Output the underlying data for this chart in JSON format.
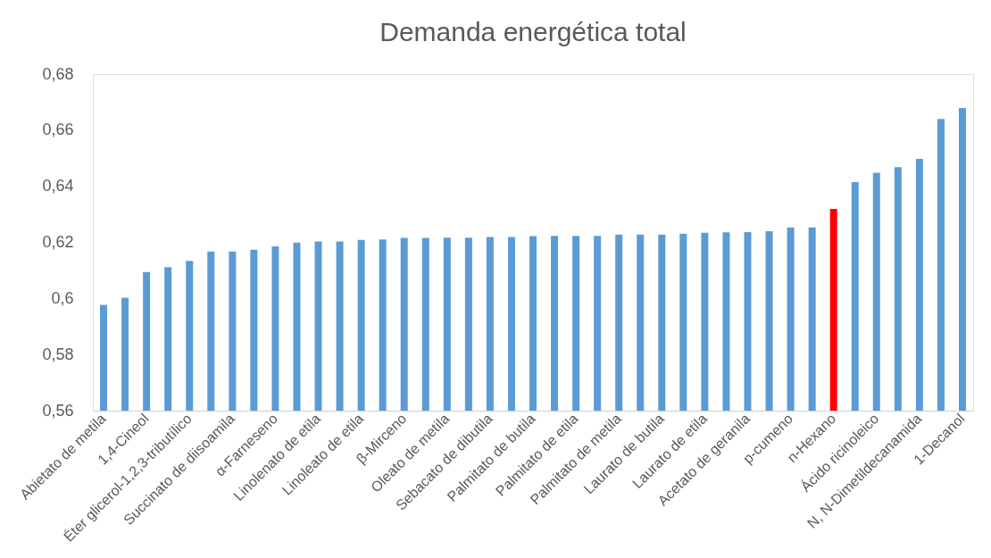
{
  "chart_data": {
    "type": "bar",
    "title": "Demanda energética total",
    "categories": [
      "Abietato de metila",
      null,
      "1,4-Cineol",
      null,
      "Éter glicerol-1,2,3-tributílico",
      null,
      "Succinato de diisoamila",
      null,
      "α-Farneseno",
      null,
      "Linolenato de etila",
      null,
      "Linoleato de etila",
      null,
      "β-Mirceno",
      null,
      "Oleato de metila",
      null,
      "Sebacato de dibutila",
      null,
      "Palmitato de butila",
      null,
      "Palmitato de etila",
      null,
      "Palmitato de metila",
      null,
      "Laurato de butila",
      null,
      "Laurato de etila",
      null,
      "Acetato de geranila",
      null,
      "p-cumeno",
      null,
      "n-Hexano",
      null,
      "Ácido ricinoleico",
      null,
      "N, N-Dimetildecanamida",
      null,
      "1-Decanol"
    ],
    "values": [
      0.5977,
      0.6003,
      0.6094,
      0.6112,
      0.6134,
      0.6167,
      0.6167,
      0.6174,
      0.6186,
      0.6199,
      0.6203,
      0.6203,
      0.6209,
      0.621,
      0.6216,
      0.6216,
      0.6217,
      0.6217,
      0.6219,
      0.6219,
      0.6222,
      0.6223,
      0.6223,
      0.6223,
      0.6228,
      0.6228,
      0.6228,
      0.6231,
      0.6234,
      0.6236,
      0.6237,
      0.624,
      0.6253,
      0.6253,
      0.6319,
      0.6415,
      0.6448,
      0.6468,
      0.6498,
      0.664,
      0.6679
    ],
    "colors": [
      "#5b9bd5",
      "#5b9bd5",
      "#5b9bd5",
      "#5b9bd5",
      "#5b9bd5",
      "#5b9bd5",
      "#5b9bd5",
      "#5b9bd5",
      "#5b9bd5",
      "#5b9bd5",
      "#5b9bd5",
      "#5b9bd5",
      "#5b9bd5",
      "#5b9bd5",
      "#5b9bd5",
      "#5b9bd5",
      "#5b9bd5",
      "#5b9bd5",
      "#5b9bd5",
      "#5b9bd5",
      "#5b9bd5",
      "#5b9bd5",
      "#5b9bd5",
      "#5b9bd5",
      "#5b9bd5",
      "#5b9bd5",
      "#5b9bd5",
      "#5b9bd5",
      "#5b9bd5",
      "#5b9bd5",
      "#5b9bd5",
      "#5b9bd5",
      "#5b9bd5",
      "#5b9bd5",
      "#ff0000",
      "#5b9bd5",
      "#5b9bd5",
      "#5b9bd5",
      "#5b9bd5",
      "#5b9bd5",
      "#5b9bd5"
    ],
    "ylim": [
      0.56,
      0.68
    ],
    "yticks": [
      {
        "value": 0.56,
        "label": "0,56"
      },
      {
        "value": 0.58,
        "label": "0,58"
      },
      {
        "value": 0.6,
        "label": "0,6"
      },
      {
        "value": 0.62,
        "label": "0,62"
      },
      {
        "value": 0.64,
        "label": "0,64"
      },
      {
        "value": 0.66,
        "label": "0,66"
      },
      {
        "value": 0.68,
        "label": "0,68"
      }
    ],
    "grid": false,
    "legend": false
  }
}
